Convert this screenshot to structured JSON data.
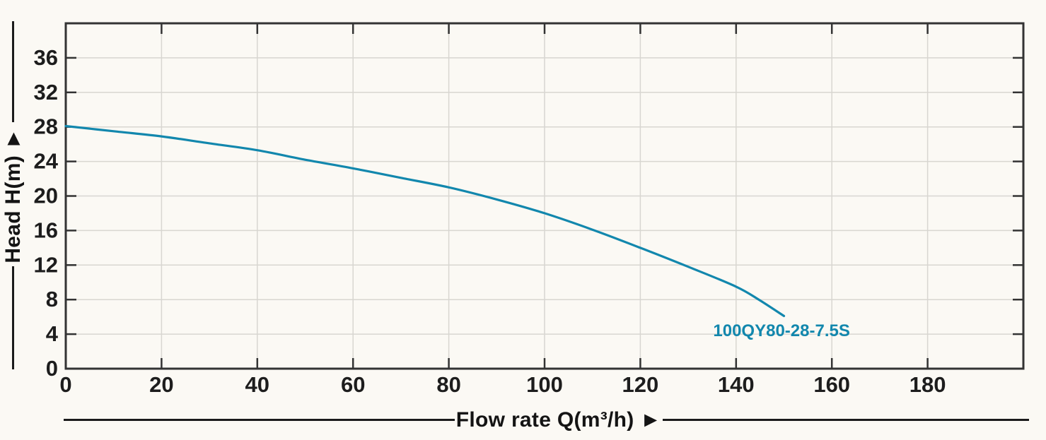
{
  "chart_data": {
    "type": "line",
    "title": "",
    "xlabel": "Flow rate Q(m³/h) ►",
    "ylabel": "Head H(m) ►",
    "xlim": [
      0,
      200
    ],
    "ylim": [
      0,
      40
    ],
    "xticks": [
      0,
      20,
      40,
      60,
      80,
      100,
      120,
      140,
      160,
      180
    ],
    "yticks": [
      0,
      4,
      8,
      12,
      16,
      20,
      24,
      28,
      32,
      36
    ],
    "grid": true,
    "legend_position": "inline-curve-label",
    "series": [
      {
        "name": "100QY80-28-7.5S",
        "color": "#1287ad",
        "x": [
          0,
          10,
          20,
          30,
          40,
          50,
          60,
          70,
          80,
          90,
          100,
          110,
          120,
          130,
          140,
          145,
          150
        ],
        "y": [
          28.1,
          27.5,
          26.9,
          26.1,
          25.3,
          24.2,
          23.2,
          22.1,
          21.0,
          19.6,
          18.0,
          16.1,
          14.0,
          11.8,
          9.5,
          7.9,
          6.1
        ],
        "label_x": 149.5,
        "label_y": 3.75
      }
    ],
    "colors": {
      "background": "#fbf9f4",
      "axis": "#333333",
      "grid": "#d8d6d1",
      "tick_label": "#1d1d1d",
      "axis_title": "#141414",
      "curve": "#1287ad"
    }
  }
}
